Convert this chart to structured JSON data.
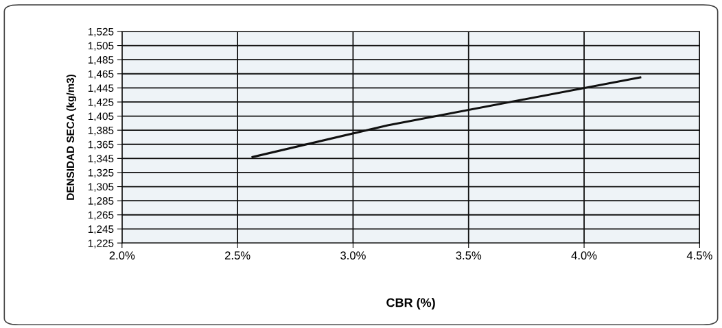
{
  "chart_data": {
    "type": "line",
    "xlabel": "CBR (%)",
    "ylabel": "DENSIDAD SECA (kg/m3)",
    "x": [
      2.565,
      3.15,
      4.243
    ],
    "series": [
      {
        "color": "#111111",
        "values": [
          1347,
          1392,
          1460
        ]
      }
    ],
    "xlim": [
      2.0,
      4.5
    ],
    "xticks": [
      {
        "value": 2.0,
        "label": "2.0%"
      },
      {
        "value": 2.5,
        "label": "2.5%"
      },
      {
        "value": 3.0,
        "label": "3.0%"
      },
      {
        "value": 3.5,
        "label": "3.5%"
      },
      {
        "value": 4.0,
        "label": "4.0%"
      },
      {
        "value": 4.5,
        "label": "4.5%"
      }
    ],
    "ylim": [
      1225,
      1525
    ],
    "yticks": [
      {
        "value": 1225,
        "label": "1,225"
      },
      {
        "value": 1245,
        "label": "1,245"
      },
      {
        "value": 1265,
        "label": "1,265"
      },
      {
        "value": 1285,
        "label": "1,285"
      },
      {
        "value": 1305,
        "label": "1,305"
      },
      {
        "value": 1325,
        "label": "1,325"
      },
      {
        "value": 1345,
        "label": "1,345"
      },
      {
        "value": 1365,
        "label": "1,365"
      },
      {
        "value": 1385,
        "label": "1,385"
      },
      {
        "value": 1405,
        "label": "1,405"
      },
      {
        "value": 1425,
        "label": "1,425"
      },
      {
        "value": 1445,
        "label": "1,445"
      },
      {
        "value": 1465,
        "label": "1,465"
      },
      {
        "value": 1485,
        "label": "1,485"
      },
      {
        "value": 1505,
        "label": "1,505"
      },
      {
        "value": 1525,
        "label": "1,525"
      }
    ],
    "grid": true,
    "marker": "none",
    "line_style": "solid",
    "legend": false
  }
}
